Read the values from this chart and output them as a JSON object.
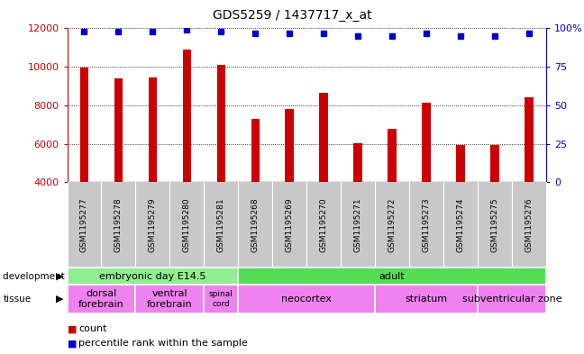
{
  "title": "GDS5259 / 1437717_x_at",
  "samples": [
    "GSM1195277",
    "GSM1195278",
    "GSM1195279",
    "GSM1195280",
    "GSM1195281",
    "GSM1195268",
    "GSM1195269",
    "GSM1195270",
    "GSM1195271",
    "GSM1195272",
    "GSM1195273",
    "GSM1195274",
    "GSM1195275",
    "GSM1195276"
  ],
  "counts": [
    9950,
    9400,
    9450,
    10900,
    10100,
    7300,
    7800,
    8650,
    6050,
    6800,
    8150,
    5950,
    5950,
    8400
  ],
  "percentiles": [
    98,
    98,
    98,
    99,
    98,
    97,
    97,
    97,
    95,
    95,
    97,
    95,
    95,
    97
  ],
  "ymin": 4000,
  "ymax": 12000,
  "yticks": [
    4000,
    6000,
    8000,
    10000,
    12000
  ],
  "y2ticks": [
    0,
    25,
    50,
    75,
    100
  ],
  "bar_color": "#cc0000",
  "dot_color": "#0000cc",
  "plot_bg": "#ffffff",
  "tick_bg": "#c8c8c8",
  "dev_stage_light": "#90ee90",
  "dev_stage_dark": "#55dd55",
  "tissue_color": "#ee82ee",
  "development_stages": [
    {
      "label": "embryonic day E14.5",
      "start": 0,
      "end": 5,
      "color": "#90ee90"
    },
    {
      "label": "adult",
      "start": 5,
      "end": 14,
      "color": "#55dd55"
    }
  ],
  "tissues": [
    {
      "label": "dorsal\nforebrain",
      "start": 0,
      "end": 2,
      "color": "#ee82ee"
    },
    {
      "label": "ventral\nforebrain",
      "start": 2,
      "end": 4,
      "color": "#ee82ee"
    },
    {
      "label": "spinal\ncord",
      "start": 4,
      "end": 5,
      "color": "#ee82ee"
    },
    {
      "label": "neocortex",
      "start": 5,
      "end": 9,
      "color": "#ee82ee"
    },
    {
      "label": "striatum",
      "start": 9,
      "end": 12,
      "color": "#ee82ee"
    },
    {
      "label": "subventricular zone",
      "start": 12,
      "end": 14,
      "color": "#ee82ee"
    }
  ]
}
